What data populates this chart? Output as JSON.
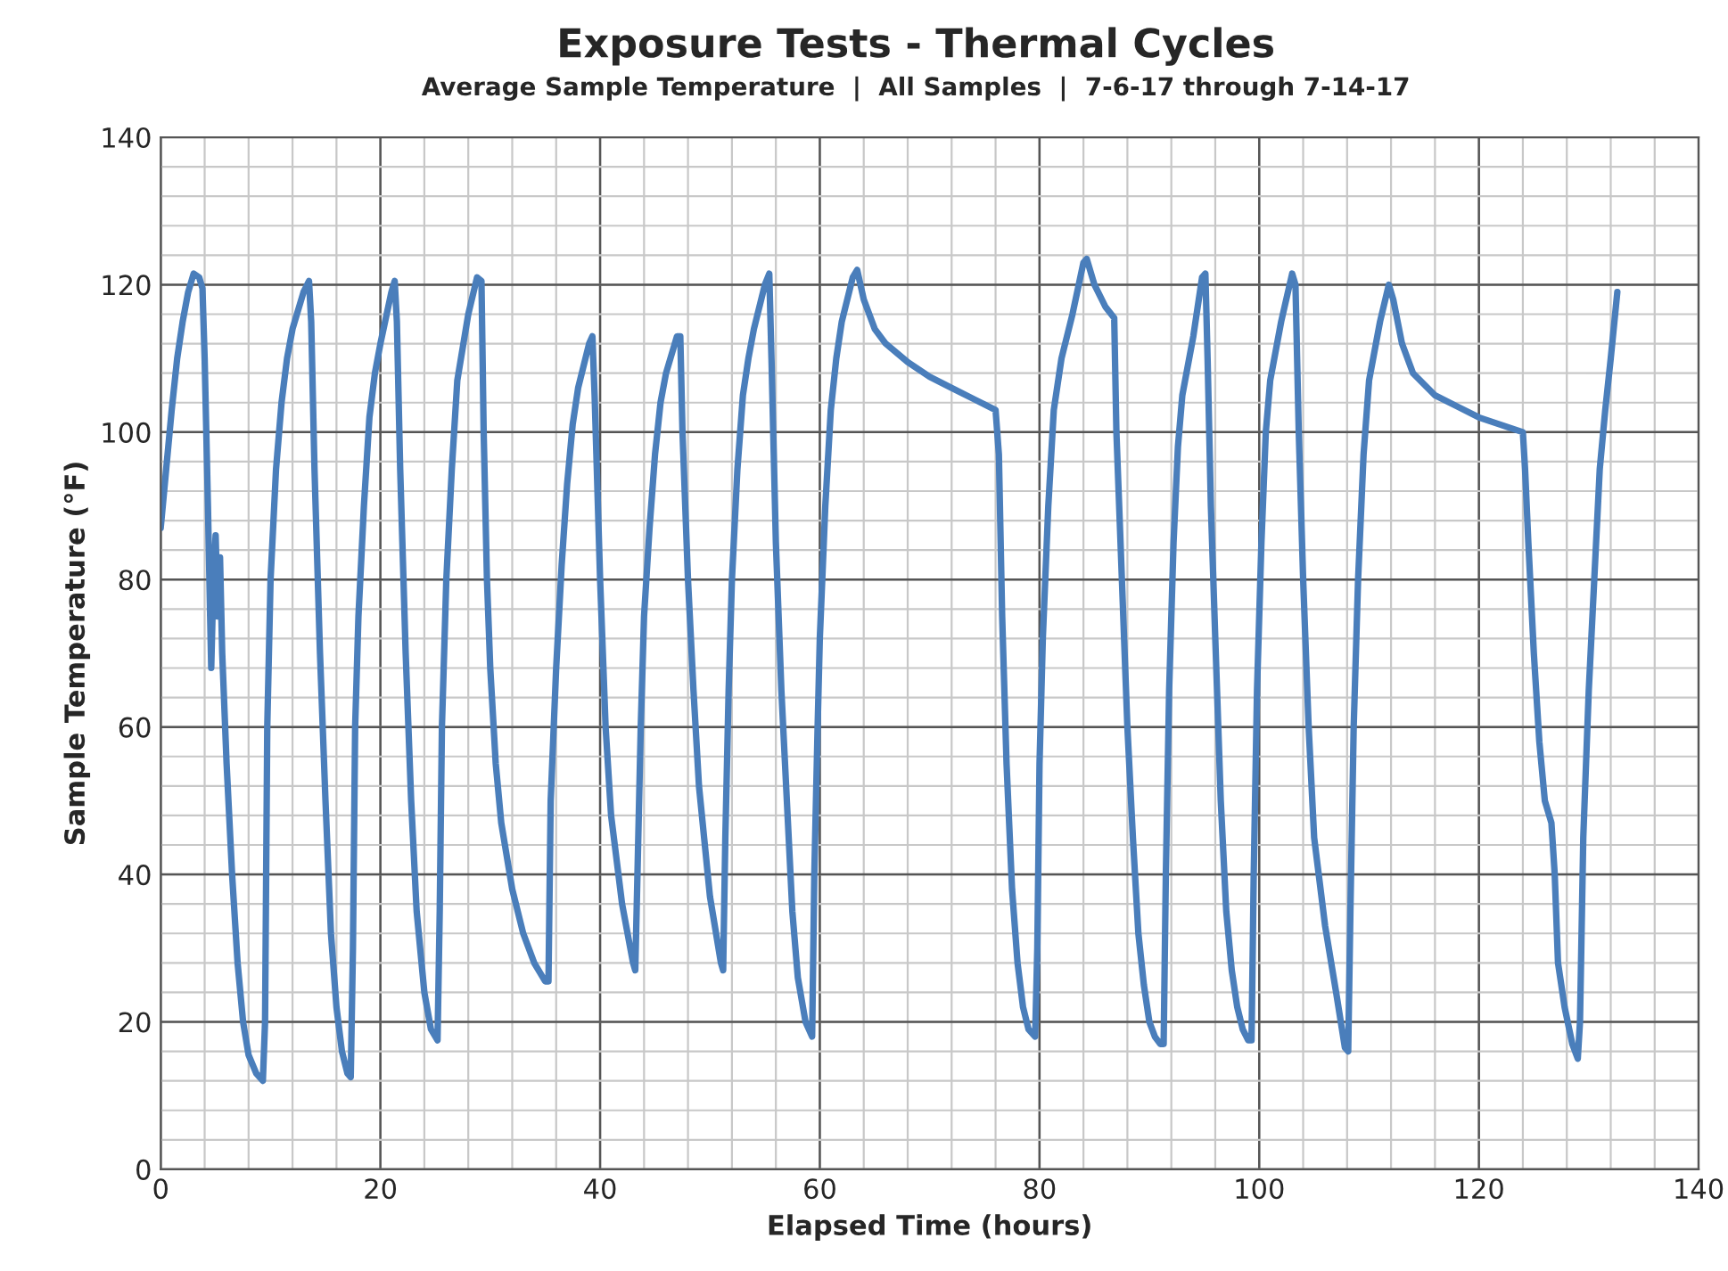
{
  "chart_data": {
    "type": "line",
    "title": "Exposure Tests - Thermal Cycles",
    "subtitle": "Average Sample Temperature  |  All Samples  |  7-6-17 through 7-14-17",
    "xlabel": "Elapsed Time (hours)",
    "ylabel": "Sample Temperature (°F)",
    "xlim": [
      0,
      140
    ],
    "ylim": [
      0,
      140
    ],
    "xticks": [
      0,
      20,
      40,
      60,
      80,
      100,
      120,
      140
    ],
    "yticks": [
      0,
      20,
      40,
      60,
      80,
      100,
      120,
      140
    ],
    "grid": true,
    "line_style": "solid",
    "series": [
      {
        "color": "#4a7ebb",
        "x": [
          0,
          0.5,
          1,
          1.5,
          2,
          2.5,
          3,
          3.5,
          3.8,
          4,
          4.3,
          4.5,
          4.6,
          4.8,
          5,
          5.2,
          5.4,
          5.6,
          6,
          6.5,
          7,
          7.5,
          8,
          8.7,
          9.3,
          9.5,
          9.7,
          10,
          10.5,
          11,
          11.5,
          12,
          13,
          13.5,
          13.7,
          14,
          14.5,
          15,
          15.5,
          16,
          16.5,
          17,
          17.3,
          17.5,
          17.7,
          18,
          18.5,
          19,
          19.5,
          20,
          21,
          21.3,
          21.5,
          21.8,
          22.3,
          22.8,
          23.3,
          24,
          24.6,
          25.2,
          25.4,
          25.6,
          26,
          26.5,
          27,
          28,
          28.8,
          29.2,
          29.4,
          29.7,
          30,
          30.5,
          31,
          32,
          33,
          34,
          35,
          35.3,
          35.5,
          36,
          36.5,
          37,
          37.5,
          38,
          39,
          39.3,
          39.5,
          40,
          40.5,
          41,
          42,
          43,
          43.2,
          43.4,
          43.7,
          44,
          44.5,
          45,
          45.5,
          46,
          47,
          47.3,
          47.5,
          48,
          48.5,
          49,
          50,
          51,
          51.2,
          51.4,
          51.7,
          52,
          52.5,
          53,
          53.5,
          54,
          55,
          55.4,
          55.6,
          56,
          56.5,
          57,
          57.5,
          58,
          58.7,
          59.3,
          59.5,
          59.8,
          60,
          60.5,
          61,
          61.5,
          62,
          63,
          63.4,
          64,
          65,
          66,
          68,
          70,
          72,
          74,
          76,
          76.3,
          76.6,
          77,
          77.5,
          78,
          78.5,
          79,
          79.6,
          79.8,
          80,
          80.3,
          80.8,
          81.3,
          82,
          83,
          84,
          84.3,
          85,
          86,
          86.8,
          87,
          87.5,
          88,
          88.5,
          89,
          89.5,
          90,
          90.5,
          91,
          91.3,
          91.5,
          91.8,
          92.2,
          92.6,
          93,
          94,
          94.8,
          95.1,
          95.3,
          95.6,
          96,
          96.5,
          97,
          97.5,
          98,
          98.5,
          99,
          99.3,
          99.5,
          99.8,
          100.2,
          100.6,
          101,
          102,
          103,
          103.3,
          103.6,
          104,
          104.5,
          105,
          106,
          107,
          107.8,
          108.1,
          108.3,
          108.6,
          109,
          109.5,
          110,
          111,
          111.8,
          112.2,
          113,
          114,
          116,
          118,
          120,
          122,
          124,
          124.2,
          124.5,
          125,
          125.5,
          126,
          126.6,
          126.9,
          127.2,
          127.8,
          128.5,
          129,
          129.2,
          129.5,
          130,
          130.5,
          131,
          131.5,
          132,
          132.6
        ],
        "values": [
          87,
          95,
          103,
          110,
          115,
          119,
          121.5,
          121,
          119.5,
          110,
          90,
          75,
          68,
          80,
          86,
          75,
          83,
          70,
          55,
          40,
          28,
          20,
          15.5,
          13,
          12,
          20,
          60,
          80,
          95,
          104,
          110,
          114,
          119,
          120.5,
          115,
          95,
          70,
          50,
          32,
          22,
          16,
          13,
          12.5,
          30,
          60,
          75,
          90,
          102,
          108,
          112,
          119,
          120.5,
          115,
          95,
          70,
          50,
          35,
          24,
          19,
          17.5,
          35,
          60,
          80,
          95,
          107,
          116,
          121,
          120.5,
          100,
          80,
          68,
          55,
          47,
          38,
          32,
          28,
          25.5,
          25.5,
          50,
          68,
          82,
          93,
          101,
          106,
          112,
          113,
          105,
          80,
          60,
          48,
          36,
          28,
          27,
          40,
          60,
          75,
          87,
          97,
          104,
          108,
          113,
          113,
          100,
          80,
          65,
          52,
          37,
          28,
          27,
          45,
          65,
          80,
          95,
          105,
          110,
          114,
          120,
          121.5,
          110,
          85,
          65,
          50,
          35,
          26,
          20,
          18,
          40,
          60,
          72,
          90,
          103,
          110,
          115,
          121,
          122,
          118,
          114,
          112,
          109.5,
          107.5,
          106,
          104.5,
          103,
          97,
          75,
          55,
          38,
          28,
          22,
          19,
          18,
          30,
          55,
          72,
          90,
          103,
          110,
          116,
          123,
          123.5,
          120,
          117,
          115.5,
          100,
          80,
          60,
          45,
          32,
          25,
          20,
          18,
          17,
          17,
          40,
          65,
          85,
          98,
          105,
          113,
          121,
          121.5,
          110,
          90,
          72,
          50,
          35,
          27,
          22,
          19,
          17.5,
          17.5,
          40,
          65,
          85,
          100,
          107,
          115,
          121.5,
          120,
          100,
          80,
          60,
          45,
          33,
          24,
          16.5,
          16,
          35,
          60,
          80,
          97,
          107,
          115,
          120,
          118,
          112,
          108,
          105,
          103.5,
          102,
          101,
          100,
          95,
          85,
          70,
          58,
          50,
          47,
          40,
          28,
          22,
          17,
          15,
          20,
          45,
          65,
          80,
          95,
          103,
          110,
          119
        ]
      }
    ]
  }
}
